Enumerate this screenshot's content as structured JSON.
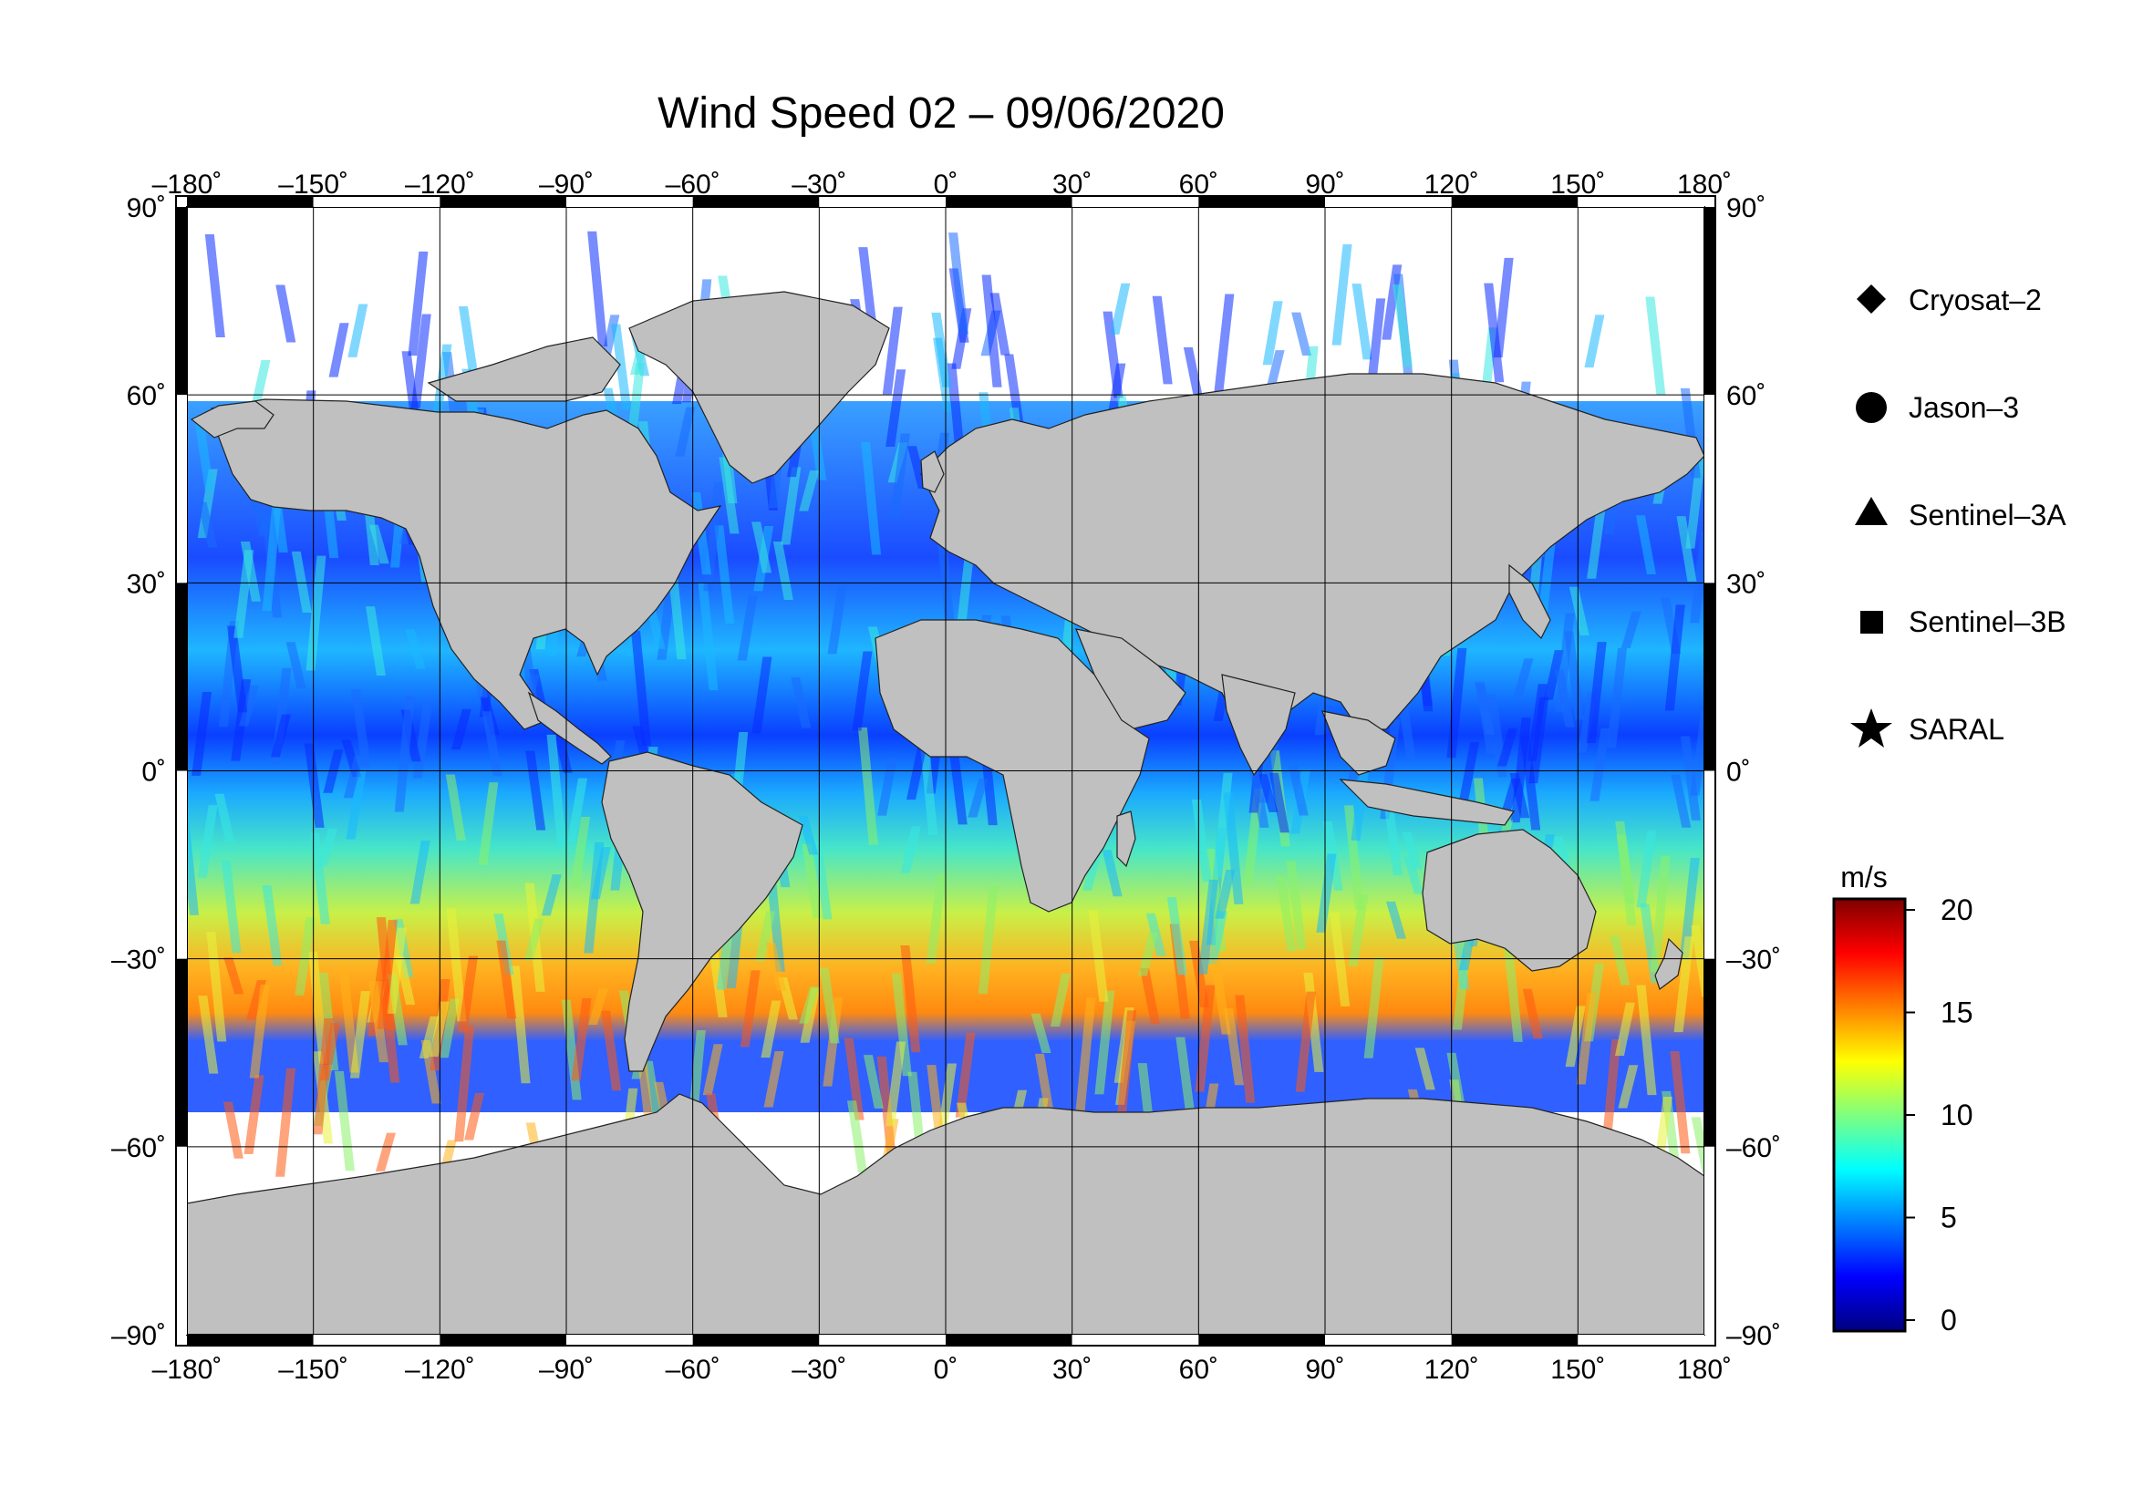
{
  "title": "Wind Speed 02 – 09/06/2020",
  "map": {
    "x_ticks": [
      "–180˚",
      "–150˚",
      "–120˚",
      "–90˚",
      "–60˚",
      "–30˚",
      "0˚",
      "30˚",
      "60˚",
      "90˚",
      "120˚",
      "150˚",
      "180˚"
    ],
    "y_ticks_left": [
      "90˚",
      "60˚",
      "30˚",
      "0˚",
      "–30˚",
      "–60˚",
      "–90˚"
    ],
    "y_ticks_right": [
      "90˚",
      "60˚",
      "30˚",
      "0˚",
      "–30˚",
      "–60˚",
      "–90˚"
    ],
    "x_range": [
      -180,
      180
    ],
    "y_range": [
      -90,
      90
    ],
    "grid_spacing_deg": 30,
    "land_color": "#c0c0c0",
    "ice_color": "#ffffff"
  },
  "legend": {
    "items": [
      {
        "label": "Cryosat–2",
        "marker": "diamond"
      },
      {
        "label": "Jason–3",
        "marker": "circle"
      },
      {
        "label": "Sentinel–3A",
        "marker": "triangle"
      },
      {
        "label": "Sentinel–3B",
        "marker": "square"
      },
      {
        "label": "SARAL",
        "marker": "star"
      }
    ]
  },
  "colorbar": {
    "unit": "m/s",
    "ticks": [
      "20",
      "15",
      "10",
      "5",
      "0"
    ],
    "range": [
      0,
      20
    ],
    "colors": [
      "#00007f",
      "#0000ff",
      "#007fff",
      "#00ffff",
      "#7fff7f",
      "#ffff00",
      "#ff7f00",
      "#ff0000",
      "#7f0000"
    ]
  }
}
